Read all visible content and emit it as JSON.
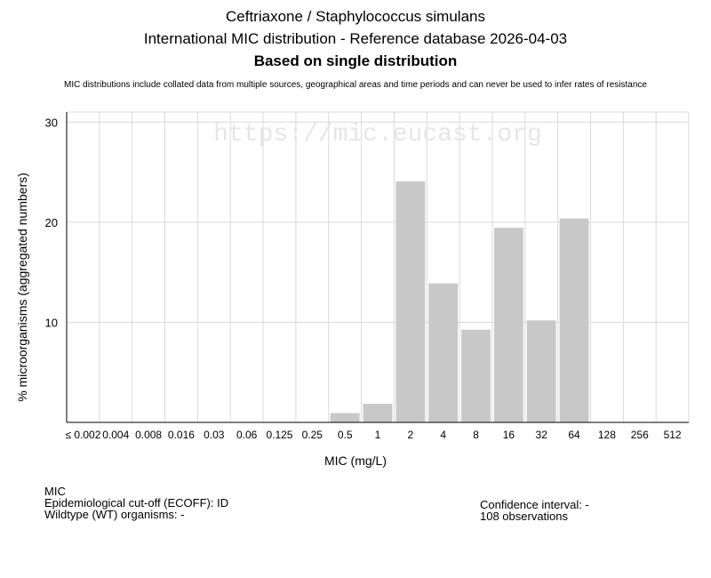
{
  "header": {
    "title": "Ceftriaxone / Staphylococcus simulans",
    "subtitle": "International MIC distribution - Reference database 2026-04-03",
    "basis": "Based on single distribution",
    "disclaimer": "MIC distributions include collated data from multiple sources, geographical areas and time periods and can never be used to infer rates of resistance"
  },
  "watermark": "https://mic.eucast.org",
  "footer": {
    "mic_label": "MIC",
    "ecoff": "Epidemiological cut-off (ECOFF): ID",
    "wildtype": "Wildtype (WT) organisms:  -",
    "confidence": "Confidence interval: -",
    "observations": "108 observations"
  },
  "chart_data": {
    "type": "bar",
    "xlabel": "MIC (mg/L)",
    "ylabel": "% microorganisms (aggregated numbers)",
    "ylim": [
      0,
      31
    ],
    "yticks": [
      10,
      20,
      30
    ],
    "grid": true,
    "categories": [
      "≤ 0.002",
      "0.004",
      "0.008",
      "0.016",
      "0.03",
      "0.06",
      "0.125",
      "0.25",
      "0.5",
      "1",
      "2",
      "4",
      "8",
      "16",
      "32",
      "64",
      "128",
      "256",
      "512"
    ],
    "values": [
      0,
      0,
      0,
      0,
      0,
      0,
      0,
      0,
      0.93,
      1.85,
      24.07,
      13.89,
      9.26,
      19.44,
      10.19,
      20.37,
      0,
      0,
      0
    ],
    "bar_color": "#c8c8c8"
  }
}
